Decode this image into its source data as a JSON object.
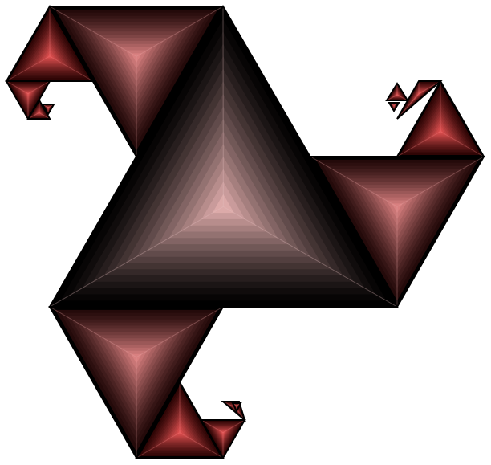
{
  "figure": {
    "kind": "fractal-triskelion",
    "colors": {
      "background": "#ffffff",
      "edge": "#000000",
      "central_glow": "#dcaaa9",
      "arm_glow": "#d98080",
      "arm_edge": "#1e0606",
      "tip_glow": "#e05050",
      "tip_edge": "#2a0303"
    }
  }
}
